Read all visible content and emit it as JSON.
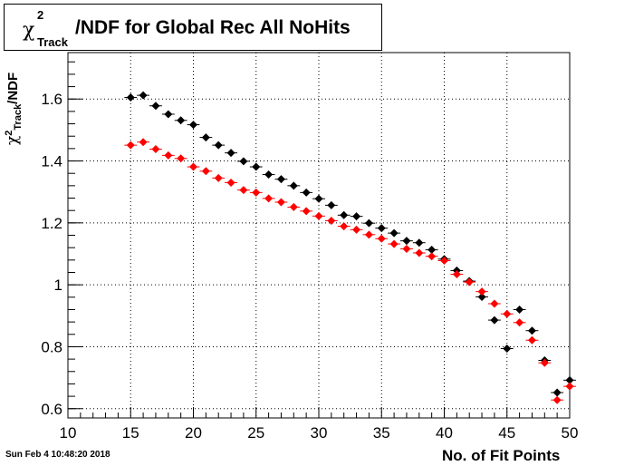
{
  "chart_data": {
    "type": "scatter",
    "title": {
      "prefix": "χ",
      "superscript": "2",
      "subscript": "Track",
      "suffix": "/NDF for Global Rec All NoHits"
    },
    "xlabel": "No. of Fit Points",
    "ylabel": {
      "prefix": "χ",
      "superscript": "2",
      "subscript": "Track",
      "suffix": "/NDF"
    },
    "xlim": [
      10,
      50
    ],
    "ylim": [
      0.57,
      1.75
    ],
    "x_ticks": [
      10,
      15,
      20,
      25,
      30,
      35,
      40,
      45,
      50
    ],
    "y_ticks": [
      0.6,
      0.8,
      1,
      1.2,
      1.4,
      1.6
    ],
    "y_tick_labels": [
      "0.6",
      "0.8",
      "1",
      "1.2",
      "1.4",
      "1.6"
    ],
    "grid": true,
    "series": [
      {
        "color": "#000000",
        "x": [
          15,
          16,
          17,
          18,
          19,
          20,
          21,
          22,
          23,
          24,
          25,
          26,
          27,
          28,
          29,
          30,
          31,
          32,
          33,
          34,
          35,
          36,
          37,
          38,
          39,
          40,
          41,
          42,
          43,
          44,
          45,
          46,
          47,
          48,
          49,
          50
        ],
        "y": [
          1.605,
          1.612,
          1.578,
          1.551,
          1.531,
          1.517,
          1.476,
          1.451,
          1.426,
          1.399,
          1.381,
          1.356,
          1.341,
          1.32,
          1.298,
          1.278,
          1.257,
          1.225,
          1.221,
          1.199,
          1.183,
          1.167,
          1.142,
          1.136,
          1.113,
          1.083,
          1.046,
          1.012,
          0.961,
          0.886,
          0.794,
          0.92,
          0.852,
          0.756,
          0.652,
          0.692
        ]
      },
      {
        "color": "#ff0000",
        "x": [
          15,
          16,
          17,
          18,
          19,
          20,
          21,
          22,
          23,
          24,
          25,
          26,
          27,
          28,
          29,
          30,
          31,
          32,
          33,
          34,
          35,
          36,
          37,
          38,
          39,
          40,
          41,
          42,
          43,
          44,
          45,
          46,
          47,
          48,
          49,
          50
        ],
        "y": [
          1.451,
          1.461,
          1.438,
          1.418,
          1.408,
          1.381,
          1.367,
          1.345,
          1.33,
          1.306,
          1.298,
          1.279,
          1.267,
          1.251,
          1.238,
          1.222,
          1.207,
          1.189,
          1.178,
          1.162,
          1.149,
          1.132,
          1.116,
          1.103,
          1.092,
          1.078,
          1.034,
          1.009,
          0.978,
          0.939,
          0.906,
          0.878,
          0.821,
          0.748,
          0.628,
          0.672
        ]
      }
    ]
  },
  "footer": {
    "timestamp": "Sun Feb  4 10:48:20 2018"
  }
}
